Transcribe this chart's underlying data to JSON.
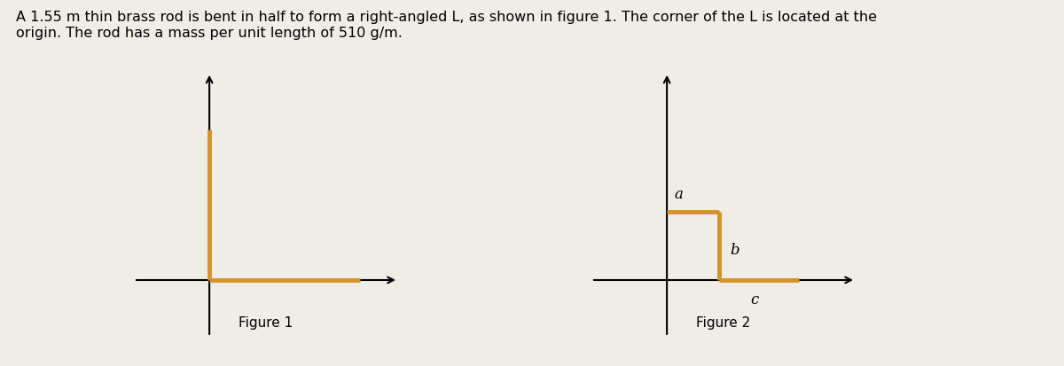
{
  "title_text": "A 1.55 m thin brass rod is bent in half to form a right-angled L, as shown in figure 1. The corner of the L is located at the\norigin. The rod has a mass per unit length of 510 g/m.",
  "title_fontsize": 11.5,
  "bg_color": "#f0ece6",
  "rod_color": "#d4922a",
  "rod_linewidth": 3.5,
  "axis_linewidth": 1.5,
  "figure_label_1": "Figure 1",
  "figure_label_2": "Figure 2",
  "label_a": "a",
  "label_b": "b",
  "label_c": "c"
}
